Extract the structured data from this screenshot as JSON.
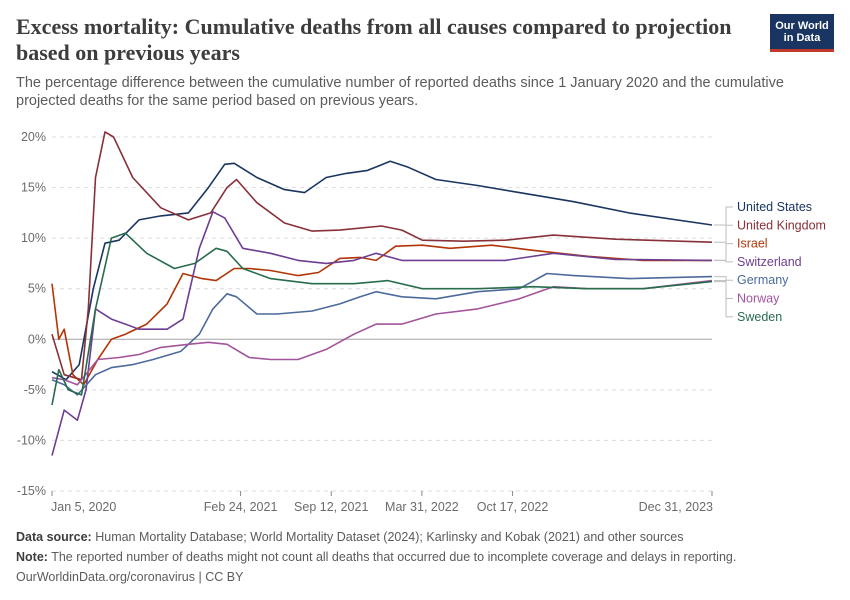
{
  "header": {
    "title": "Excess mortality: Cumulative deaths from all causes compared to projection based on previous years",
    "subtitle": "The percentage difference between the cumulative number of reported deaths since 1 January 2020 and the cumulative projected deaths for the same period based on previous years.",
    "logo_line1": "Our World",
    "logo_line2": "in Data"
  },
  "footer": {
    "source_label": "Data source:",
    "source_text": "Human Mortality Database; World Mortality Dataset (2024); Karlinsky and Kobak (2021) and other sources",
    "note_label": "Note:",
    "note_text": "The reported number of deaths might not count all deaths that occurred due to incomplete coverage and delays in reporting.",
    "credit": "OurWorldinData.org/coronavirus | CC BY"
  },
  "chart_data": {
    "type": "line",
    "x_axis": "date",
    "xlim": [
      "2020-01-05",
      "2023-12-31"
    ],
    "ylim": [
      -15,
      20
    ],
    "y_ticks": [
      -15,
      -10,
      -5,
      0,
      5,
      10,
      15,
      20
    ],
    "y_tick_labels": [
      "-15%",
      "-10%",
      "-5%",
      "0%",
      "5%",
      "10%",
      "15%",
      "20%"
    ],
    "x_ticks": [
      "2020-01-05",
      "2021-02-24",
      "2021-09-12",
      "2022-03-31",
      "2022-10-17",
      "2023-12-31"
    ],
    "x_tick_labels": [
      "Jan 5, 2020",
      "Feb 24, 2021",
      "Sep 12, 2021",
      "Mar 31, 2022",
      "Oct 17, 2022",
      "Dec 31, 2023"
    ],
    "grid": "horizontal dashed",
    "legend": "right, labels at line ends",
    "series": [
      {
        "name": "United States",
        "color": "#1a3561",
        "points": [
          [
            "2020-01-05",
            -3.2
          ],
          [
            "2020-02-05",
            -4.0
          ],
          [
            "2020-03-05",
            -2.5
          ],
          [
            "2020-04-05",
            5.0
          ],
          [
            "2020-05-01",
            9.5
          ],
          [
            "2020-06-01",
            9.8
          ],
          [
            "2020-07-15",
            11.8
          ],
          [
            "2020-09-01",
            12.2
          ],
          [
            "2020-11-01",
            12.5
          ],
          [
            "2020-12-15",
            15.0
          ],
          [
            "2021-01-20",
            17.3
          ],
          [
            "2021-02-10",
            17.4
          ],
          [
            "2021-04-01",
            16.0
          ],
          [
            "2021-06-01",
            14.8
          ],
          [
            "2021-07-15",
            14.5
          ],
          [
            "2021-09-01",
            16.0
          ],
          [
            "2021-10-15",
            16.4
          ],
          [
            "2021-12-01",
            16.7
          ],
          [
            "2022-01-20",
            17.6
          ],
          [
            "2022-03-01",
            17.0
          ],
          [
            "2022-05-01",
            15.8
          ],
          [
            "2022-08-01",
            15.2
          ],
          [
            "2022-11-01",
            14.5
          ],
          [
            "2023-03-01",
            13.6
          ],
          [
            "2023-07-01",
            12.5
          ],
          [
            "2023-12-31",
            11.3
          ]
        ]
      },
      {
        "name": "United Kingdom",
        "color": "#883039",
        "points": [
          [
            "2020-01-05",
            0.5
          ],
          [
            "2020-02-01",
            -3.5
          ],
          [
            "2020-03-10",
            -4.0
          ],
          [
            "2020-03-25",
            3.0
          ],
          [
            "2020-04-10",
            16.0
          ],
          [
            "2020-05-01",
            20.5
          ],
          [
            "2020-05-20",
            20.0
          ],
          [
            "2020-07-01",
            16.0
          ],
          [
            "2020-09-01",
            13.0
          ],
          [
            "2020-11-01",
            11.8
          ],
          [
            "2020-12-20",
            12.5
          ],
          [
            "2021-01-25",
            15.0
          ],
          [
            "2021-02-15",
            15.8
          ],
          [
            "2021-04-01",
            13.5
          ],
          [
            "2021-06-01",
            11.5
          ],
          [
            "2021-08-01",
            10.7
          ],
          [
            "2021-10-01",
            10.8
          ],
          [
            "2022-01-01",
            11.2
          ],
          [
            "2022-02-15",
            10.8
          ],
          [
            "2022-04-01",
            9.8
          ],
          [
            "2022-07-01",
            9.7
          ],
          [
            "2022-10-01",
            9.8
          ],
          [
            "2023-01-15",
            10.3
          ],
          [
            "2023-06-01",
            9.9
          ],
          [
            "2023-12-31",
            9.6
          ]
        ]
      },
      {
        "name": "Israel",
        "color": "#b13507",
        "points": [
          [
            "2020-01-05",
            5.5
          ],
          [
            "2020-01-20",
            0.0
          ],
          [
            "2020-02-01",
            1.0
          ],
          [
            "2020-02-20",
            -3.5
          ],
          [
            "2020-03-15",
            -4.5
          ],
          [
            "2020-04-15",
            -2.0
          ],
          [
            "2020-05-15",
            0.0
          ],
          [
            "2020-06-15",
            0.5
          ],
          [
            "2020-08-01",
            1.5
          ],
          [
            "2020-09-15",
            3.5
          ],
          [
            "2020-10-20",
            6.5
          ],
          [
            "2020-12-01",
            6.0
          ],
          [
            "2021-01-01",
            5.8
          ],
          [
            "2021-02-10",
            7.0
          ],
          [
            "2021-03-15",
            7.0
          ],
          [
            "2021-05-01",
            6.8
          ],
          [
            "2021-07-01",
            6.3
          ],
          [
            "2021-08-15",
            6.6
          ],
          [
            "2021-10-01",
            8.0
          ],
          [
            "2021-11-15",
            8.1
          ],
          [
            "2021-12-20",
            7.8
          ],
          [
            "2022-02-01",
            9.2
          ],
          [
            "2022-04-01",
            9.3
          ],
          [
            "2022-06-01",
            9.0
          ],
          [
            "2022-09-01",
            9.3
          ],
          [
            "2022-12-01",
            8.8
          ],
          [
            "2023-04-01",
            8.2
          ],
          [
            "2023-08-01",
            7.8
          ],
          [
            "2023-12-31",
            7.8
          ]
        ]
      },
      {
        "name": "Switzerland",
        "color": "#6d3e91",
        "points": [
          [
            "2020-01-05",
            -11.5
          ],
          [
            "2020-02-01",
            -7.0
          ],
          [
            "2020-03-01",
            -8.0
          ],
          [
            "2020-03-20",
            -5.0
          ],
          [
            "2020-04-10",
            3.0
          ],
          [
            "2020-05-15",
            2.0
          ],
          [
            "2020-06-15",
            1.5
          ],
          [
            "2020-07-15",
            1.0
          ],
          [
            "2020-09-15",
            1.0
          ],
          [
            "2020-10-20",
            2.0
          ],
          [
            "2020-11-25",
            9.0
          ],
          [
            "2020-12-25",
            12.6
          ],
          [
            "2021-01-20",
            12.0
          ],
          [
            "2021-03-01",
            9.0
          ],
          [
            "2021-05-01",
            8.5
          ],
          [
            "2021-07-01",
            7.8
          ],
          [
            "2021-09-01",
            7.5
          ],
          [
            "2021-11-01",
            7.8
          ],
          [
            "2021-12-20",
            8.5
          ],
          [
            "2022-02-15",
            7.8
          ],
          [
            "2022-06-01",
            7.8
          ],
          [
            "2022-10-01",
            7.8
          ],
          [
            "2023-01-15",
            8.5
          ],
          [
            "2023-06-01",
            7.9
          ],
          [
            "2023-12-31",
            7.8
          ]
        ]
      },
      {
        "name": "Germany",
        "color": "#4c6a9c",
        "points": [
          [
            "2020-01-05",
            -4.0
          ],
          [
            "2020-02-01",
            -4.5
          ],
          [
            "2020-03-01",
            -5.5
          ],
          [
            "2020-04-10",
            -3.5
          ],
          [
            "2020-05-15",
            -2.8
          ],
          [
            "2020-07-01",
            -2.5
          ],
          [
            "2020-08-15",
            -2.0
          ],
          [
            "2020-10-15",
            -1.2
          ],
          [
            "2020-11-25",
            0.5
          ],
          [
            "2020-12-25",
            3.0
          ],
          [
            "2021-01-25",
            4.5
          ],
          [
            "2021-02-15",
            4.2
          ],
          [
            "2021-04-01",
            2.5
          ],
          [
            "2021-05-15",
            2.5
          ],
          [
            "2021-08-01",
            2.8
          ],
          [
            "2021-10-01",
            3.5
          ],
          [
            "2021-11-15",
            4.2
          ],
          [
            "2021-12-20",
            4.7
          ],
          [
            "2022-02-15",
            4.2
          ],
          [
            "2022-05-01",
            4.0
          ],
          [
            "2022-08-01",
            4.7
          ],
          [
            "2022-11-01",
            5.0
          ],
          [
            "2023-01-01",
            6.5
          ],
          [
            "2023-03-01",
            6.3
          ],
          [
            "2023-07-01",
            6.0
          ],
          [
            "2023-12-31",
            6.2
          ]
        ]
      },
      {
        "name": "Norway",
        "color": "#a2559c",
        "points": [
          [
            "2020-01-05",
            -3.8
          ],
          [
            "2020-02-01",
            -4.0
          ],
          [
            "2020-03-01",
            -4.5
          ],
          [
            "2020-04-15",
            -2.0
          ],
          [
            "2020-06-01",
            -1.8
          ],
          [
            "2020-07-15",
            -1.5
          ],
          [
            "2020-09-01",
            -0.8
          ],
          [
            "2020-11-01",
            -0.5
          ],
          [
            "2020-12-15",
            -0.3
          ],
          [
            "2021-01-25",
            -0.5
          ],
          [
            "2021-03-15",
            -1.8
          ],
          [
            "2021-05-01",
            -2.0
          ],
          [
            "2021-07-01",
            -2.0
          ],
          [
            "2021-09-01",
            -1.0
          ],
          [
            "2021-11-01",
            0.5
          ],
          [
            "2021-12-20",
            1.5
          ],
          [
            "2022-02-15",
            1.5
          ],
          [
            "2022-05-01",
            2.5
          ],
          [
            "2022-08-01",
            3.0
          ],
          [
            "2022-11-01",
            4.0
          ],
          [
            "2023-01-15",
            5.2
          ],
          [
            "2023-04-01",
            5.0
          ],
          [
            "2023-08-01",
            5.0
          ],
          [
            "2023-12-31",
            5.8
          ]
        ]
      },
      {
        "name": "Sweden",
        "color": "#286c4c",
        "points": [
          [
            "2020-01-05",
            -6.5
          ],
          [
            "2020-01-20",
            -3.0
          ],
          [
            "2020-02-10",
            -5.0
          ],
          [
            "2020-03-10",
            -5.5
          ],
          [
            "2020-04-10",
            3.0
          ],
          [
            "2020-05-15",
            10.0
          ],
          [
            "2020-06-15",
            10.5
          ],
          [
            "2020-08-01",
            8.5
          ],
          [
            "2020-10-01",
            7.0
          ],
          [
            "2020-11-15",
            7.5
          ],
          [
            "2021-01-01",
            9.0
          ],
          [
            "2021-01-25",
            8.7
          ],
          [
            "2021-03-01",
            7.0
          ],
          [
            "2021-05-01",
            6.0
          ],
          [
            "2021-08-01",
            5.5
          ],
          [
            "2021-11-01",
            5.5
          ],
          [
            "2022-01-15",
            5.8
          ],
          [
            "2022-04-01",
            5.0
          ],
          [
            "2022-08-01",
            5.0
          ],
          [
            "2022-12-01",
            5.2
          ],
          [
            "2023-04-01",
            5.0
          ],
          [
            "2023-08-01",
            5.0
          ],
          [
            "2023-12-31",
            5.7
          ]
        ]
      }
    ]
  }
}
